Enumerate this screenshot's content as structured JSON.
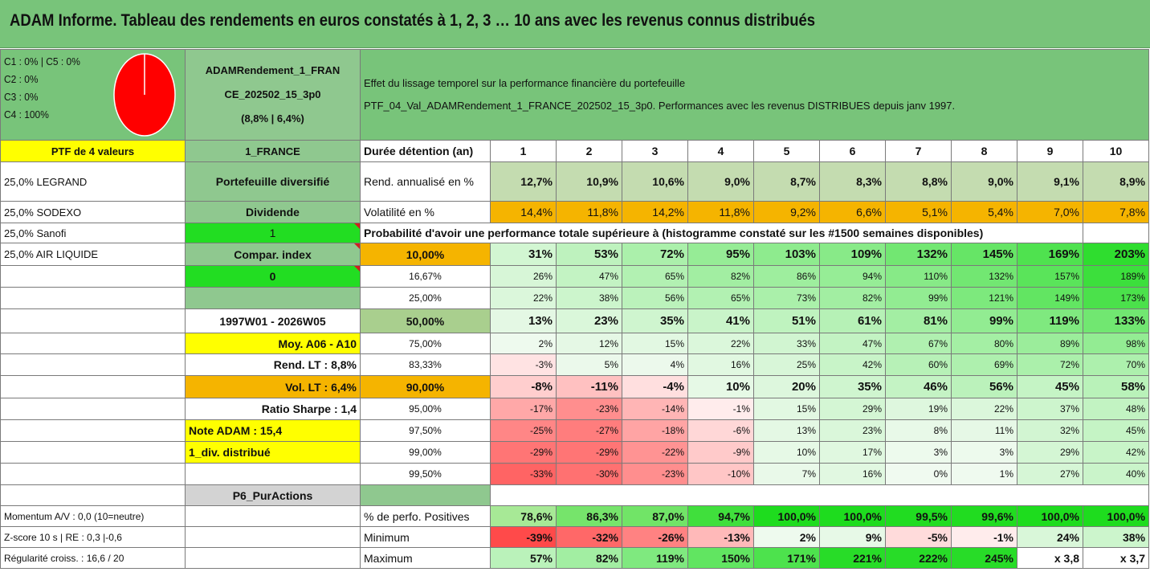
{
  "title": "ADAM Informe. Tableau des rendements en euros constatés à 1, 2, 3 … 10 ans avec les revenus connus distribués",
  "composition": [
    "C1 : 0% | C5 : 0%",
    "C2 : 0%",
    "C3 : 0%",
    "C4 : 100%"
  ],
  "pie": {
    "share": 1.0,
    "color": "#ff0000"
  },
  "fund": {
    "name_line1": "ADAMRendement_1_FRAN",
    "name_line2": "CE_202502_15_3p0",
    "name_line3": "(8,8% | 6,4%)"
  },
  "description": {
    "line1": "Effet du lissage temporel sur la performance financière du portefeuille",
    "line2": "PTF_04_Val_ADAMRendement_1_FRANCE_202502_15_3p0. Performances avec les revenus DISTRIBUES depuis janv 1997."
  },
  "left": {
    "ptf": "PTF de 4 valeurs",
    "holdings": [
      "25,0% LEGRAND",
      "25,0% SODEXO",
      "25,0% Sanofi",
      "25,0% AIR LIQUIDE"
    ]
  },
  "info": {
    "market": "1_FRANCE",
    "type": "Portefeuille diversifié",
    "dividend_label": "Dividende",
    "dividend_value": "1",
    "compar_label": "Compar. index",
    "compar_value": "0",
    "period": "1997W01 - 2026W05",
    "moy": "Moy. A06 - A10",
    "rend_lt": "Rend. LT : 8,8%",
    "vol_lt": "Vol. LT : 6,4%",
    "sharpe": "Ratio Sharpe : 1,4",
    "note": "Note ADAM : 15,4",
    "div": "1_div. distribué",
    "p6": "P6_PurActions",
    "momentum": "Momentum A/V : 0,0 (10=neutre)",
    "zscore": "Z-score 10 s | RE : 0,3 |-0,6",
    "regularite": "Régularité croiss. : 16,6 / 20"
  },
  "table": {
    "duration_label": "Durée détention (an)",
    "years": [
      "1",
      "2",
      "3",
      "4",
      "5",
      "6",
      "7",
      "8",
      "9",
      "10"
    ],
    "rend_label": "Rend. annualisé en %",
    "rend": [
      "12,7%",
      "10,9%",
      "10,6%",
      "9,0%",
      "8,7%",
      "8,3%",
      "8,8%",
      "9,0%",
      "9,1%",
      "8,9%"
    ],
    "vol_label": "Volatilité en %",
    "vol": [
      "14,4%",
      "11,8%",
      "14,2%",
      "11,8%",
      "9,2%",
      "6,6%",
      "5,1%",
      "5,4%",
      "7,0%",
      "7,8%"
    ],
    "prob_caption": "Probabilité d'avoir une performance totale supérieure à (histogramme constaté sur les #1500 semaines disponibles)",
    "prob_rows": [
      {
        "p": "10,00%",
        "v": [
          "31%",
          "53%",
          "72%",
          "95%",
          "103%",
          "109%",
          "132%",
          "145%",
          "169%",
          "203%"
        ]
      },
      {
        "p": "16,67%",
        "v": [
          "26%",
          "47%",
          "65%",
          "82%",
          "86%",
          "94%",
          "110%",
          "132%",
          "157%",
          "189%"
        ]
      },
      {
        "p": "25,00%",
        "v": [
          "22%",
          "38%",
          "56%",
          "65%",
          "73%",
          "82%",
          "99%",
          "121%",
          "149%",
          "173%"
        ]
      },
      {
        "p": "50,00%",
        "v": [
          "13%",
          "23%",
          "35%",
          "41%",
          "51%",
          "61%",
          "81%",
          "99%",
          "119%",
          "133%"
        ]
      },
      {
        "p": "75,00%",
        "v": [
          "2%",
          "12%",
          "15%",
          "22%",
          "33%",
          "47%",
          "67%",
          "80%",
          "89%",
          "98%"
        ]
      },
      {
        "p": "83,33%",
        "v": [
          "-3%",
          "5%",
          "4%",
          "16%",
          "25%",
          "42%",
          "60%",
          "69%",
          "72%",
          "70%"
        ]
      },
      {
        "p": "90,00%",
        "v": [
          "-8%",
          "-11%",
          "-4%",
          "10%",
          "20%",
          "35%",
          "46%",
          "56%",
          "45%",
          "58%"
        ]
      },
      {
        "p": "95,00%",
        "v": [
          "-17%",
          "-23%",
          "-14%",
          "-1%",
          "15%",
          "29%",
          "19%",
          "22%",
          "37%",
          "48%"
        ]
      },
      {
        "p": "97,50%",
        "v": [
          "-25%",
          "-27%",
          "-18%",
          "-6%",
          "13%",
          "23%",
          "8%",
          "11%",
          "32%",
          "45%"
        ]
      },
      {
        "p": "99,00%",
        "v": [
          "-29%",
          "-29%",
          "-22%",
          "-9%",
          "10%",
          "17%",
          "3%",
          "3%",
          "29%",
          "42%"
        ]
      },
      {
        "p": "99,50%",
        "v": [
          "-33%",
          "-30%",
          "-23%",
          "-10%",
          "7%",
          "16%",
          "0%",
          "1%",
          "27%",
          "40%"
        ]
      }
    ],
    "pos_label": "% de perfo. Positives",
    "pos": [
      "78,6%",
      "86,3%",
      "87,0%",
      "94,7%",
      "100,0%",
      "100,0%",
      "99,5%",
      "99,6%",
      "100,0%",
      "100,0%"
    ],
    "min_label": "Minimum",
    "min": [
      "-39%",
      "-32%",
      "-26%",
      "-13%",
      "2%",
      "9%",
      "-5%",
      "-1%",
      "24%",
      "38%"
    ],
    "max_label": "Maximum",
    "max": [
      "57%",
      "82%",
      "119%",
      "150%",
      "171%",
      "221%",
      "222%",
      "245%",
      "x 3,8",
      "x 3,7"
    ]
  }
}
